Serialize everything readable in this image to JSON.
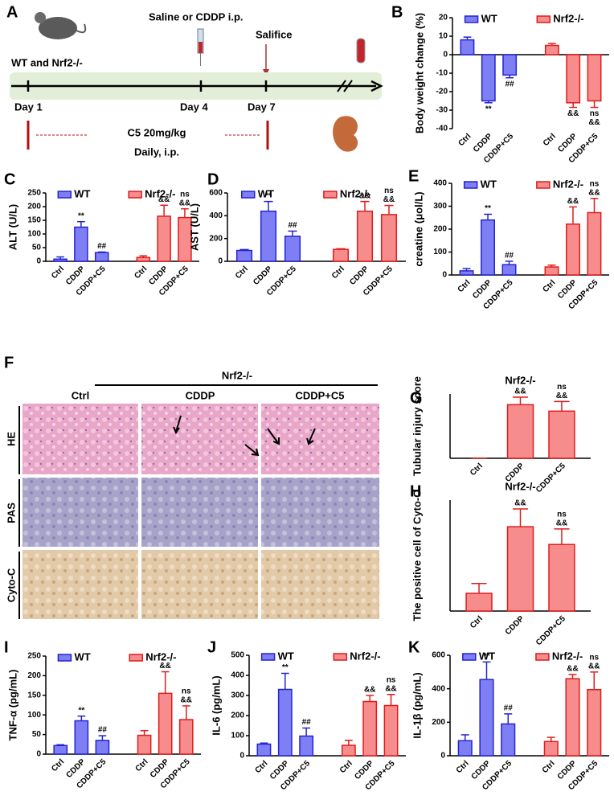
{
  "schematic": {
    "panel": "A",
    "strain": "WT and Nrf2-/-",
    "treatment": "Saline or CDDP i.p.",
    "sacrifice": "Salifice",
    "days": [
      "Day 1",
      "Day 4",
      "Day 7"
    ],
    "dose": "C5 20mg/kg",
    "schedule": "Daily, i.p."
  },
  "histology": {
    "panel": "F",
    "group": "Nrf2-/-",
    "columns": [
      "Ctrl",
      "CDDP",
      "CDDP+C5"
    ],
    "rows": [
      "HE",
      "PAS",
      "Cyto-C"
    ]
  },
  "chart_data": [
    {
      "type": "bar",
      "panel": "B",
      "ylabel": "Body weight change (%)",
      "categories": [
        "Ctrl",
        "CDDP",
        "CDDP+C5"
      ],
      "ylim": [
        -40,
        20
      ],
      "yticks": [
        -40,
        -30,
        -20,
        -10,
        0,
        10,
        20
      ],
      "series": [
        {
          "name": "WT",
          "color": "#7f7ff5",
          "edgecolor": "#2424d0",
          "values": [
            8,
            -25,
            -11
          ],
          "errors": [
            1.5,
            1,
            1.5
          ],
          "annotations": [
            null,
            [
              "**"
            ],
            [
              "##"
            ]
          ]
        },
        {
          "name": "Nrf2-/-",
          "color": "#f68c8c",
          "edgecolor": "#e01c1c",
          "values": [
            5,
            -26,
            -25
          ],
          "errors": [
            1,
            2.5,
            3.5
          ],
          "annotations": [
            null,
            [
              "&&"
            ],
            [
              "ns",
              "&&"
            ]
          ]
        }
      ]
    },
    {
      "type": "bar",
      "panel": "C",
      "ylabel": "ALT (U/L)",
      "categories": [
        "Ctrl",
        "CDDP",
        "CDDP+C5"
      ],
      "ylim": [
        0,
        250
      ],
      "yticks": [
        0,
        50,
        100,
        150,
        200,
        250
      ],
      "series": [
        {
          "name": "WT",
          "color": "#7f7ff5",
          "edgecolor": "#2424d0",
          "values": [
            8,
            125,
            32
          ],
          "errors": [
            8,
            20,
            2
          ],
          "annotations": [
            null,
            [
              "**"
            ],
            [
              "##"
            ]
          ]
        },
        {
          "name": "Nrf2-/-",
          "color": "#f68c8c",
          "edgecolor": "#e01c1c",
          "values": [
            14,
            165,
            160
          ],
          "errors": [
            6,
            40,
            32
          ],
          "annotations": [
            null,
            [
              "&&"
            ],
            [
              "ns",
              "&&"
            ]
          ]
        }
      ]
    },
    {
      "type": "bar",
      "panel": "D",
      "ylabel": "AST (U/L)",
      "categories": [
        "Ctrl",
        "CDDP",
        "CDDP+C5"
      ],
      "ylim": [
        0,
        600
      ],
      "yticks": [
        0,
        200,
        400,
        600
      ],
      "series": [
        {
          "name": "WT",
          "color": "#7f7ff5",
          "edgecolor": "#2424d0",
          "values": [
            95,
            440,
            220
          ],
          "errors": [
            8,
            85,
            45
          ],
          "annotations": [
            null,
            [
              "**"
            ],
            [
              "##"
            ]
          ]
        },
        {
          "name": "Nrf2-/-",
          "color": "#f68c8c",
          "edgecolor": "#e01c1c",
          "values": [
            105,
            440,
            410
          ],
          "errors": [
            5,
            85,
            80
          ],
          "annotations": [
            null,
            [
              "&&"
            ],
            [
              "ns",
              "&&"
            ]
          ]
        }
      ]
    },
    {
      "type": "bar",
      "panel": "E",
      "ylabel": "creatine (μol/L)",
      "categories": [
        "Ctrl",
        "CDDP",
        "CDDP+C5"
      ],
      "ylim": [
        0,
        400
      ],
      "yticks": [
        0,
        100,
        200,
        300,
        400
      ],
      "series": [
        {
          "name": "WT",
          "color": "#7f7ff5",
          "edgecolor": "#2424d0",
          "values": [
            18,
            240,
            45
          ],
          "errors": [
            10,
            25,
            15
          ],
          "annotations": [
            null,
            [
              "**"
            ],
            [
              "##"
            ]
          ]
        },
        {
          "name": "Nrf2-/-",
          "color": "#f68c8c",
          "edgecolor": "#e01c1c",
          "values": [
            35,
            222,
            272
          ],
          "errors": [
            8,
            75,
            62
          ],
          "annotations": [
            null,
            [
              "&&"
            ],
            [
              "ns",
              "&&"
            ]
          ]
        }
      ]
    },
    {
      "type": "bar",
      "panel": "G",
      "title": "Nrf2-/-",
      "ylabel": "Tubular injury score",
      "categories": [
        "Ctrl",
        "CDDP",
        "CDDP+C5"
      ],
      "ylim": [
        0,
        3
      ],
      "yticks": [],
      "color": "#f68c8c",
      "edgecolor": "#e01c1c",
      "values": [
        0,
        2.5,
        2.2
      ],
      "errors": [
        0,
        0.35,
        0.45
      ],
      "annotations": [
        null,
        [
          "&&"
        ],
        [
          "ns",
          "&&"
        ]
      ]
    },
    {
      "type": "bar",
      "panel": "H",
      "title": "Nrf2-/-",
      "ylabel": "The positive cell of Cyto-C",
      "categories": [
        "Ctrl",
        "CDDP",
        "CDDP+C5"
      ],
      "ylim": [
        0,
        25
      ],
      "yticks": [],
      "color": "#f68c8c",
      "edgecolor": "#e01c1c",
      "values": [
        4,
        19,
        15
      ],
      "errors": [
        2.2,
        4,
        3.5
      ],
      "annotations": [
        null,
        [
          "&&"
        ],
        [
          "ns",
          "&&"
        ]
      ]
    },
    {
      "type": "bar",
      "panel": "I",
      "ylabel": "TNF-α (pg/mL)",
      "categories": [
        "Ctrl",
        "CDDP",
        "CDDP+C5"
      ],
      "ylim": [
        0,
        250
      ],
      "yticks": [
        0,
        50,
        100,
        150,
        200,
        250
      ],
      "series": [
        {
          "name": "WT",
          "color": "#7f7ff5",
          "edgecolor": "#2424d0",
          "values": [
            22,
            85,
            35
          ],
          "errors": [
            2,
            12,
            12
          ],
          "annotations": [
            null,
            [
              "**"
            ],
            [
              "##"
            ]
          ]
        },
        {
          "name": "Nrf2-/-",
          "color": "#f68c8c",
          "edgecolor": "#e01c1c",
          "values": [
            48,
            155,
            88
          ],
          "errors": [
            12,
            55,
            35
          ],
          "annotations": [
            null,
            [
              "&&"
            ],
            [
              "ns",
              "&&"
            ]
          ]
        }
      ]
    },
    {
      "type": "bar",
      "panel": "J",
      "ylabel": "IL-6 (pg/mL)",
      "categories": [
        "Ctrl",
        "CDDP",
        "CDDP+C5"
      ],
      "ylim": [
        0,
        500
      ],
      "yticks": [
        0,
        100,
        200,
        300,
        400,
        500
      ],
      "series": [
        {
          "name": "WT",
          "color": "#7f7ff5",
          "edgecolor": "#2424d0",
          "values": [
            58,
            330,
            98
          ],
          "errors": [
            5,
            80,
            40
          ],
          "annotations": [
            null,
            [
              "**"
            ],
            [
              "##"
            ]
          ]
        },
        {
          "name": "Nrf2-/-",
          "color": "#f68c8c",
          "edgecolor": "#e01c1c",
          "values": [
            52,
            270,
            250
          ],
          "errors": [
            25,
            30,
            55
          ],
          "annotations": [
            null,
            [
              "&&"
            ],
            [
              "ns",
              "&&"
            ]
          ]
        }
      ]
    },
    {
      "type": "bar",
      "panel": "K",
      "ylabel": "IL-1β (pg/mL)",
      "categories": [
        "Ctrl",
        "CDDP",
        "CDDP+C5"
      ],
      "ylim": [
        0,
        600
      ],
      "yticks": [
        0,
        200,
        400,
        600
      ],
      "series": [
        {
          "name": "WT",
          "color": "#7f7ff5",
          "edgecolor": "#2424d0",
          "values": [
            90,
            455,
            190
          ],
          "errors": [
            35,
            105,
            60
          ],
          "annotations": [
            null,
            [
              "**"
            ],
            [
              "##"
            ]
          ]
        },
        {
          "name": "Nrf2-/-",
          "color": "#f68c8c",
          "edgecolor": "#e01c1c",
          "values": [
            85,
            460,
            395
          ],
          "errors": [
            25,
            25,
            105
          ],
          "annotations": [
            null,
            [
              "&&"
            ],
            [
              "ns",
              "&&"
            ]
          ]
        }
      ]
    }
  ]
}
